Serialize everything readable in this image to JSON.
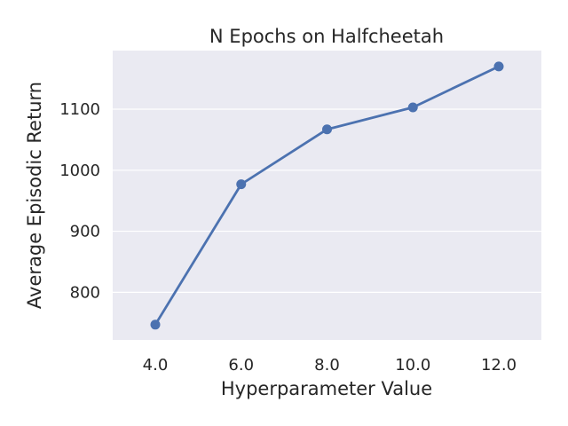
{
  "chart_data": {
    "type": "line",
    "title": "N Epochs on Halfcheetah",
    "xlabel": "Hyperparameter Value",
    "ylabel": "Average Episodic Return",
    "categories": [
      "4.0",
      "6.0",
      "8.0",
      "10.0",
      "12.0"
    ],
    "values": [
      747,
      977,
      1067,
      1103,
      1170
    ],
    "yticks": [
      800,
      900,
      1000,
      1100
    ],
    "ylim": [
      722,
      1196
    ],
    "grid": true,
    "colors": {
      "line": "#4c72b0",
      "plot_background": "#eaeaf2",
      "grid": "#ffffff",
      "text": "#262626"
    }
  }
}
